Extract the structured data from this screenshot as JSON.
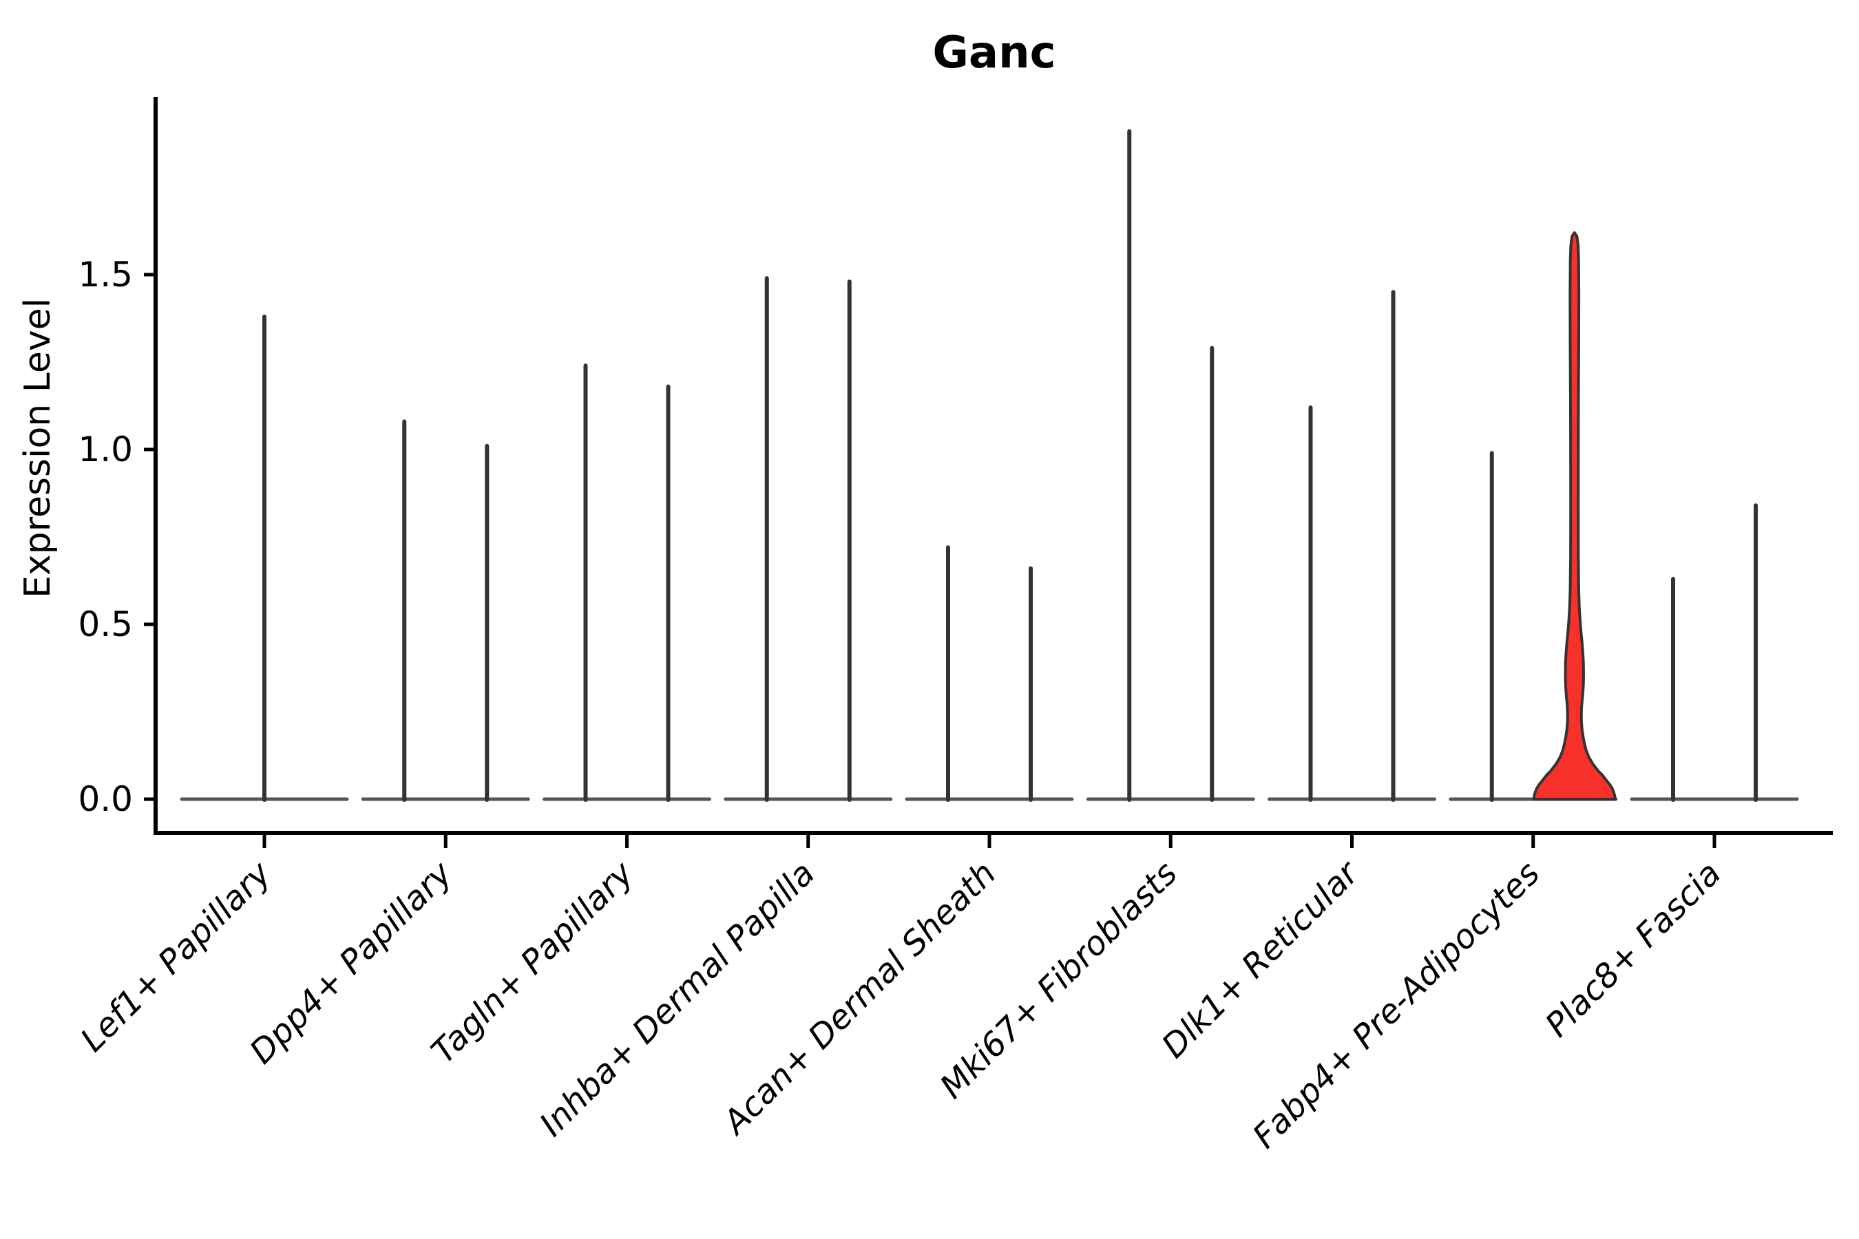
{
  "title": "Ganc",
  "chart_data": {
    "type": "violin",
    "title": "Ganc",
    "xlabel": "",
    "ylabel": "Expression Level",
    "ylim": [
      -0.1,
      2.0
    ],
    "yticks": [
      "0.0",
      "0.5",
      "1.0",
      "1.5"
    ],
    "ytick_values": [
      0.0,
      0.5,
      1.0,
      1.5
    ],
    "grid": false,
    "legend_position": "none",
    "x_tick_rotation": 45,
    "description": "Violin plot of Ganc expression per fibroblast subtype; most violins collapse to a thin needle (max expressing cell) over a flat zero baseline; two dodged violins per category except the first; the second violin of Fabp4+ Pre-Adipocytes is highlighted red with visible density.",
    "categories": [
      {
        "label": "Lef1+ Papillary",
        "violins": [
          {
            "offset": 0,
            "max": 1.38,
            "highlighted": false
          }
        ]
      },
      {
        "label": "Dpp4+ Papillary",
        "violins": [
          {
            "offset": -1,
            "max": 1.08,
            "highlighted": false
          },
          {
            "offset": 1,
            "max": 1.01,
            "highlighted": false
          }
        ]
      },
      {
        "label": "Tagln+ Papillary",
        "violins": [
          {
            "offset": -1,
            "max": 1.24,
            "highlighted": false
          },
          {
            "offset": 1,
            "max": 1.18,
            "highlighted": false
          }
        ]
      },
      {
        "label": "Inhba+ Dermal Papilla",
        "violins": [
          {
            "offset": -1,
            "max": 1.49,
            "highlighted": false
          },
          {
            "offset": 1,
            "max": 1.48,
            "highlighted": false
          }
        ]
      },
      {
        "label": "Acan+ Dermal Sheath",
        "violins": [
          {
            "offset": -1,
            "max": 0.72,
            "highlighted": false
          },
          {
            "offset": 1,
            "max": 0.66,
            "highlighted": false
          }
        ]
      },
      {
        "label": "Mki67+ Fibroblasts",
        "violins": [
          {
            "offset": -1,
            "max": 1.91,
            "highlighted": false
          },
          {
            "offset": 1,
            "max": 1.29,
            "highlighted": false
          }
        ]
      },
      {
        "label": "Dlk1+ Reticular",
        "violins": [
          {
            "offset": -1,
            "max": 1.12,
            "highlighted": false
          },
          {
            "offset": 1,
            "max": 1.45,
            "highlighted": false
          }
        ]
      },
      {
        "label": "Fabp4+ Pre-Adipocytes",
        "violins": [
          {
            "offset": -1,
            "max": 0.99,
            "highlighted": false
          },
          {
            "offset": 1,
            "max": 1.62,
            "highlighted": true
          }
        ]
      },
      {
        "label": "Plac8+ Fascia",
        "violins": [
          {
            "offset": -1,
            "max": 0.63,
            "highlighted": false
          },
          {
            "offset": 1,
            "max": 0.84,
            "highlighted": false
          }
        ]
      }
    ],
    "highlight_violin_profile": [
      [
        0.0,
        59
      ],
      [
        0.01,
        58.5
      ],
      [
        0.02,
        57
      ],
      [
        0.03,
        55
      ],
      [
        0.04,
        52
      ],
      [
        0.05,
        48
      ],
      [
        0.06,
        44
      ],
      [
        0.07,
        40
      ],
      [
        0.08,
        35
      ],
      [
        0.09,
        31
      ],
      [
        0.1,
        27
      ],
      [
        0.11,
        24
      ],
      [
        0.12,
        21
      ],
      [
        0.13,
        19
      ],
      [
        0.14,
        17
      ],
      [
        0.16,
        14.5
      ],
      [
        0.18,
        12.5
      ],
      [
        0.2,
        11
      ],
      [
        0.22,
        10.2
      ],
      [
        0.24,
        10
      ],
      [
        0.26,
        10.2
      ],
      [
        0.28,
        11
      ],
      [
        0.3,
        12
      ],
      [
        0.33,
        13
      ],
      [
        0.36,
        13.2
      ],
      [
        0.39,
        13
      ],
      [
        0.42,
        12.2
      ],
      [
        0.45,
        11
      ],
      [
        0.48,
        9.5
      ],
      [
        0.51,
        8.3
      ],
      [
        0.55,
        7
      ],
      [
        0.6,
        6.2
      ],
      [
        0.7,
        5.6
      ],
      [
        0.85,
        5.5
      ],
      [
        1.0,
        5.6
      ],
      [
        1.15,
        5.8
      ],
      [
        1.3,
        6.2
      ],
      [
        1.45,
        6.4
      ],
      [
        1.55,
        6
      ],
      [
        1.59,
        5.2
      ],
      [
        1.615,
        3.5
      ],
      [
        1.625,
        0
      ]
    ],
    "colors": {
      "highlight_fill": "#F8312A",
      "violin_stroke": "#333333",
      "baseline_stroke": "#555555",
      "axis_color": "#000000",
      "background": "#ffffff"
    }
  }
}
